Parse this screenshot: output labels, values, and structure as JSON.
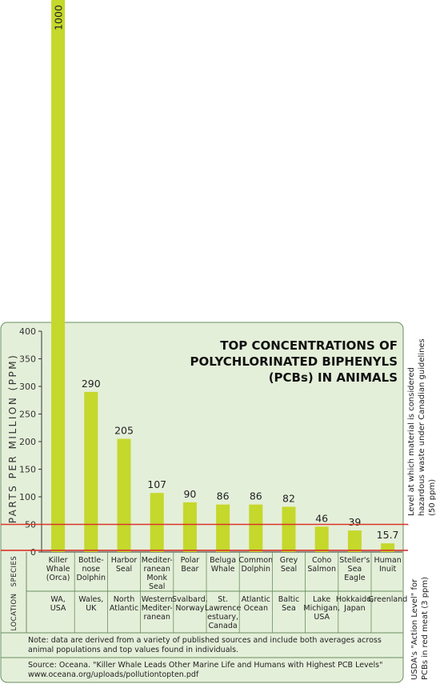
{
  "chart_data": {
    "type": "bar",
    "title": "TOP CONCENTRATIONS OF POLYCHLORINATED BIPHENYLS (PCBs) IN ANIMALS",
    "title_lines": [
      "TOP CONCENTRATIONS OF",
      "POLYCHLORINATED BIPHENYLS",
      "(PCBs) IN ANIMALS"
    ],
    "ylabel": "PARTS PER MILLION (PPM)",
    "ylim": [
      0,
      400
    ],
    "yticks": [
      0,
      50,
      100,
      150,
      200,
      250,
      300,
      350,
      400
    ],
    "grid": false,
    "bar_color": "#c5d82c",
    "background_color": "#e4efd9",
    "line_color": "#d9342b",
    "row_headers": {
      "species": "SPECIES",
      "location": "LOCATION"
    },
    "categories": [
      {
        "species": [
          "Killer",
          "Whale",
          "(Orca)"
        ],
        "location": [
          "WA,",
          "USA"
        ],
        "value": 1000,
        "label": "1000"
      },
      {
        "species": [
          "Bottle-",
          "nose",
          "Dolphin"
        ],
        "location": [
          "Wales,",
          "UK"
        ],
        "value": 290,
        "label": "290"
      },
      {
        "species": [
          "Harbor",
          "Seal"
        ],
        "location": [
          "North",
          "Atlantic"
        ],
        "value": 205,
        "label": "205"
      },
      {
        "species": [
          "Mediter-",
          "ranean",
          "Monk",
          "Seal"
        ],
        "location": [
          "Western",
          "Mediter-",
          "ranean"
        ],
        "value": 107,
        "label": "107"
      },
      {
        "species": [
          "Polar",
          "Bear"
        ],
        "location": [
          "Svalbard,",
          "Norway"
        ],
        "value": 90,
        "label": "90"
      },
      {
        "species": [
          "Beluga",
          "Whale"
        ],
        "location": [
          "St.",
          "Lawrence",
          "estuary,",
          "Canada"
        ],
        "value": 86,
        "label": "86"
      },
      {
        "species": [
          "Common",
          "Dolphin"
        ],
        "location": [
          "Atlantic",
          "Ocean"
        ],
        "value": 86,
        "label": "86"
      },
      {
        "species": [
          "Grey",
          "Seal"
        ],
        "location": [
          "Baltic",
          "Sea"
        ],
        "value": 82,
        "label": "82"
      },
      {
        "species": [
          "Coho",
          "Salmon"
        ],
        "location": [
          "Lake",
          "Michigan,",
          "USA"
        ],
        "value": 46,
        "label": "46"
      },
      {
        "species": [
          "Steller's",
          "Sea",
          "Eagle"
        ],
        "location": [
          "Hokkaido,",
          "Japan"
        ],
        "value": 39,
        "label": "39"
      },
      {
        "species": [
          "Human",
          "Inuit"
        ],
        "location": [
          "Greenland"
        ],
        "value": 15.7,
        "label": "15.7"
      }
    ],
    "reference_lines": [
      {
        "value": 50,
        "label_lines": [
          "Level at which material is considered",
          "hazardous waste under Canadian guidelines",
          "(50 ppm)"
        ]
      },
      {
        "value": 3,
        "label_lines": [
          "USDA's \"Action Level\" for",
          "PCBs in red meat (3 ppm)"
        ]
      }
    ],
    "note_lines": [
      "Note: data are derived from a variety of published sources and include both averages across",
      "animal populations and top values found in individuals."
    ],
    "source_lines": [
      "Source: Oceana. \"Killer Whale Leads Other Marine Life and Humans with Highest PCB Levels\"",
      "www.oceana.org/uploads/pollutiontopten.pdf"
    ]
  }
}
